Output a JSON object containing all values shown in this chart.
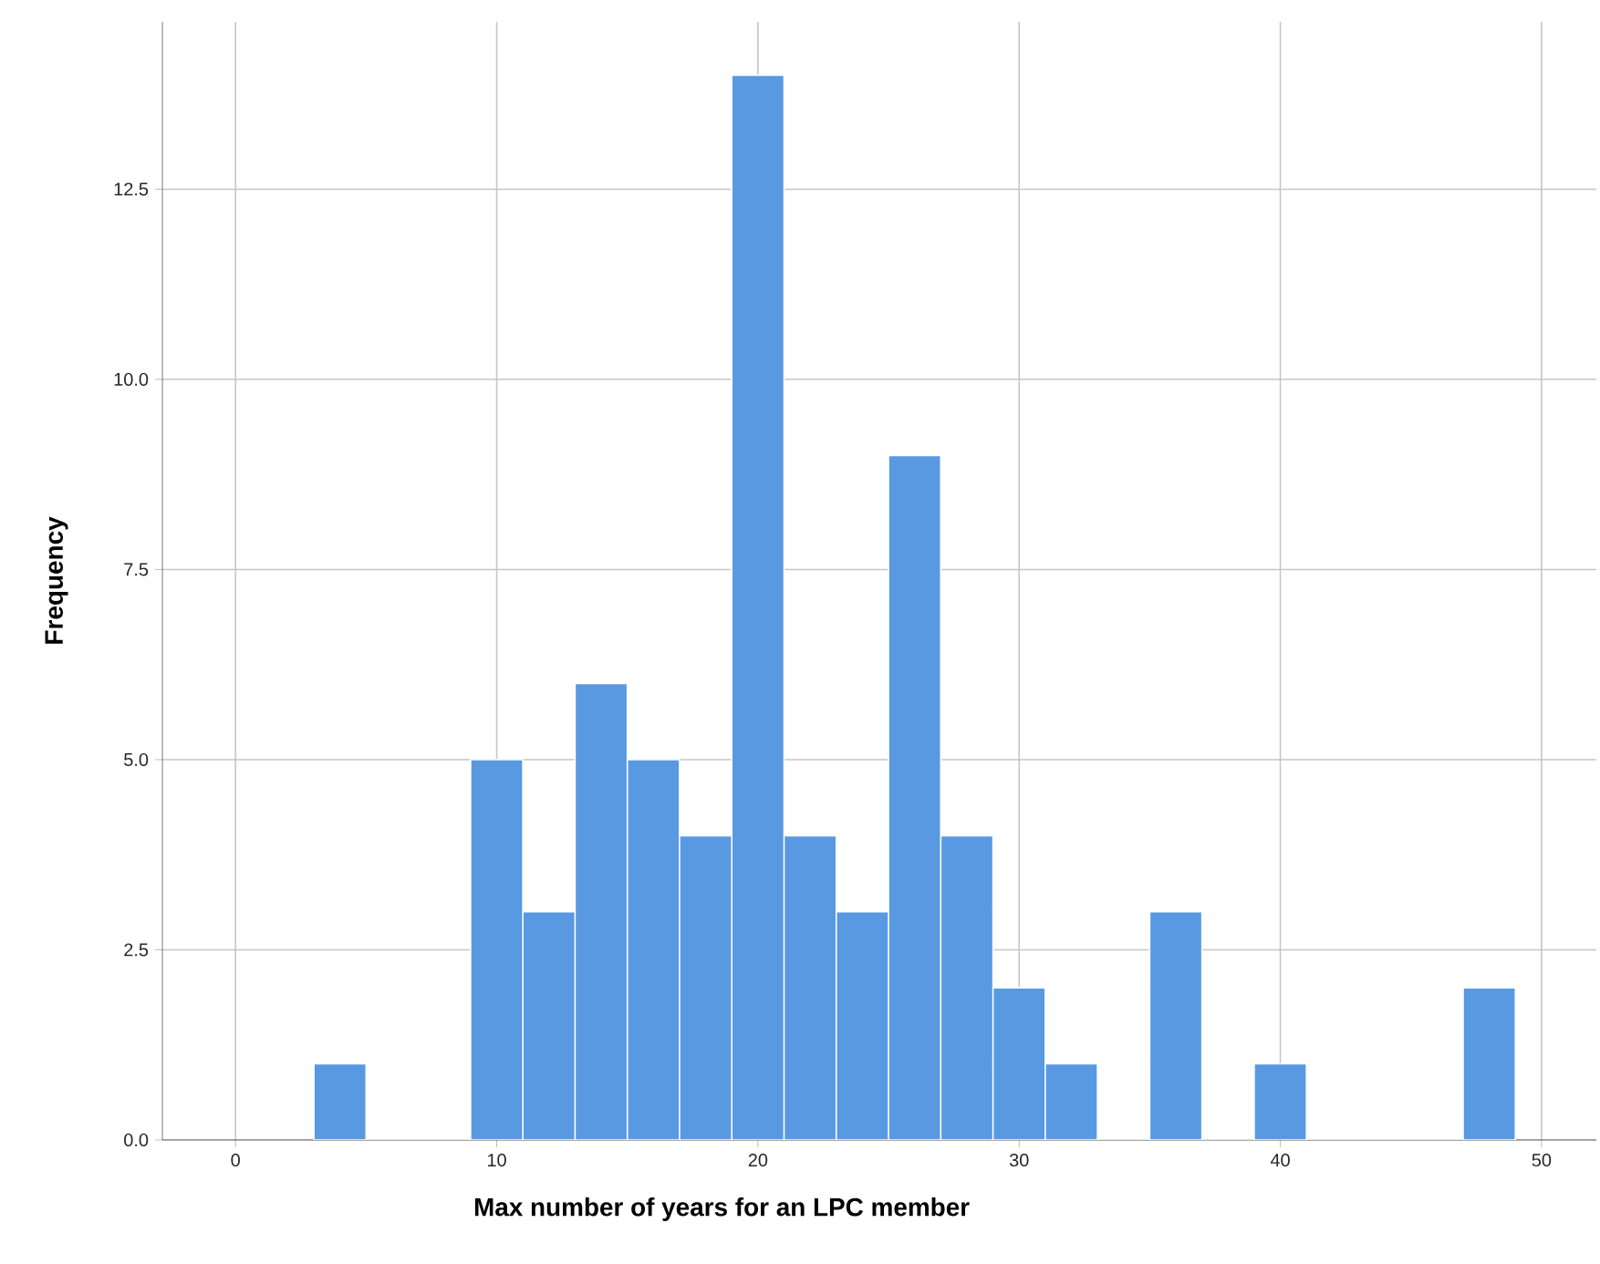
{
  "chart_data": {
    "type": "histogram",
    "xlabel": "Max number of years for an LPC member",
    "ylabel": "Frequency",
    "bins": [
      3,
      5,
      7,
      9,
      11,
      13,
      15,
      17,
      19,
      21,
      23,
      25,
      27,
      29,
      31,
      33,
      35,
      37,
      39,
      41,
      43,
      45,
      47,
      49
    ],
    "values": [
      1,
      0,
      0,
      5,
      3,
      6,
      5,
      4,
      14,
      4,
      3,
      9,
      4,
      2,
      1,
      0,
      3,
      0,
      1,
      0,
      0,
      0,
      2
    ],
    "color": "#5899e2",
    "xlim": [
      -2.8,
      52.1
    ],
    "ylim": [
      0,
      14.7
    ],
    "xticks": [
      0,
      10,
      20,
      30,
      40,
      50
    ],
    "yticks": [
      {
        "value": 0,
        "label": "0.0"
      },
      {
        "value": 2.5,
        "label": "2.5"
      },
      {
        "value": 5,
        "label": "5.0"
      },
      {
        "value": 7.5,
        "label": "7.5"
      },
      {
        "value": 10,
        "label": "10.0"
      },
      {
        "value": 12.5,
        "label": "12.5"
      }
    ],
    "grid": true
  }
}
